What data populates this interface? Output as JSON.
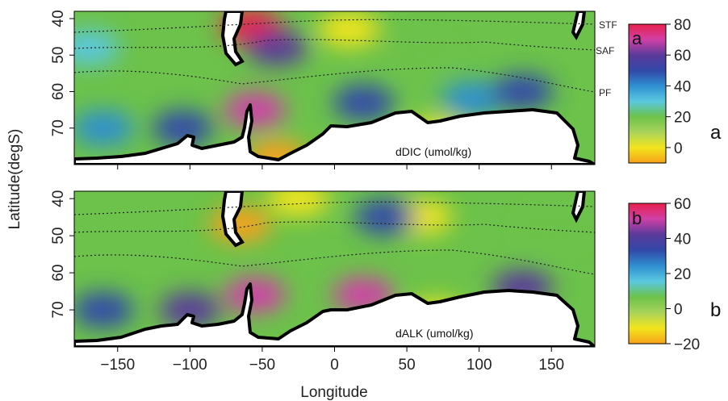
{
  "chart_data": [
    {
      "type": "heatmap",
      "panel_letter": "a",
      "annotation": "dDIC (umol/kg)",
      "xlabel": "Longitude",
      "ylabel": "Latitude(degS)",
      "xlim": [
        -180,
        180
      ],
      "ylim": [
        80,
        38
      ],
      "x_ticks": [
        -150,
        -100,
        -50,
        0,
        50,
        100,
        150
      ],
      "y_ticks": [
        40,
        50,
        60,
        70
      ],
      "colorbar": {
        "min": -10,
        "max": 80,
        "ticks": [
          0,
          20,
          40,
          60,
          80
        ],
        "label": "a"
      },
      "front_labels": [
        "STF",
        "SAF",
        "PF"
      ],
      "colormap": [
        "#f7a11a",
        "#f2e51e",
        "#a9d35a",
        "#6cc24a",
        "#5ac8e0",
        "#2f8fd0",
        "#3248a8",
        "#5a3a9a",
        "#d040a8",
        "#e8204a"
      ],
      "hotspots": [
        {
          "lon": -55,
          "lat": 65,
          "value": 70
        },
        {
          "lon": -58,
          "lat": 42,
          "value": 78
        },
        {
          "lon": -40,
          "lat": 48,
          "value": 55
        },
        {
          "lon": -105,
          "lat": 70,
          "value": 45
        },
        {
          "lon": 20,
          "lat": 63,
          "value": 48
        },
        {
          "lon": 95,
          "lat": 62,
          "value": 42
        },
        {
          "lon": 130,
          "lat": 60,
          "value": 45
        },
        {
          "lon": -160,
          "lat": 70,
          "value": 38
        },
        {
          "lon": 10,
          "lat": 43,
          "value": 0
        },
        {
          "lon": 70,
          "lat": 72,
          "value": 0
        },
        {
          "lon": -40,
          "lat": 78,
          "value": -5
        },
        {
          "lon": -170,
          "lat": 48,
          "value": 30
        },
        {
          "lon": 60,
          "lat": 50,
          "value": 20
        }
      ]
    },
    {
      "type": "heatmap",
      "panel_letter": "b",
      "annotation": "dALK (umol/kg)",
      "xlabel": "Longitude",
      "ylabel": "Latitude(degS)",
      "xlim": [
        -180,
        180
      ],
      "ylim": [
        80,
        38
      ],
      "x_ticks": [
        -150,
        -100,
        -50,
        0,
        50,
        100,
        150
      ],
      "y_ticks": [
        40,
        50,
        60,
        70
      ],
      "colorbar": {
        "min": -20,
        "max": 60,
        "ticks": [
          -20,
          0,
          20,
          40,
          60
        ],
        "label": "b"
      },
      "colormap": [
        "#f7a11a",
        "#f2e51e",
        "#a9d35a",
        "#6cc24a",
        "#5ac8e0",
        "#2f8fd0",
        "#3248a8",
        "#5a3a9a",
        "#d040a8",
        "#e8204a"
      ],
      "hotspots": [
        {
          "lon": -55,
          "lat": 66,
          "value": 50
        },
        {
          "lon": -100,
          "lat": 70,
          "value": 40
        },
        {
          "lon": 20,
          "lat": 66,
          "value": 45
        },
        {
          "lon": 130,
          "lat": 64,
          "value": 40
        },
        {
          "lon": -160,
          "lat": 70,
          "value": 30
        },
        {
          "lon": -65,
          "lat": 47,
          "value": -15
        },
        {
          "lon": -25,
          "lat": 40,
          "value": -12
        },
        {
          "lon": 60,
          "lat": 45,
          "value": -10
        },
        {
          "lon": 150,
          "lat": 48,
          "value": 5
        },
        {
          "lon": 35,
          "lat": 45,
          "value": 30
        },
        {
          "lon": 70,
          "lat": 72,
          "value": -5
        }
      ]
    }
  ]
}
